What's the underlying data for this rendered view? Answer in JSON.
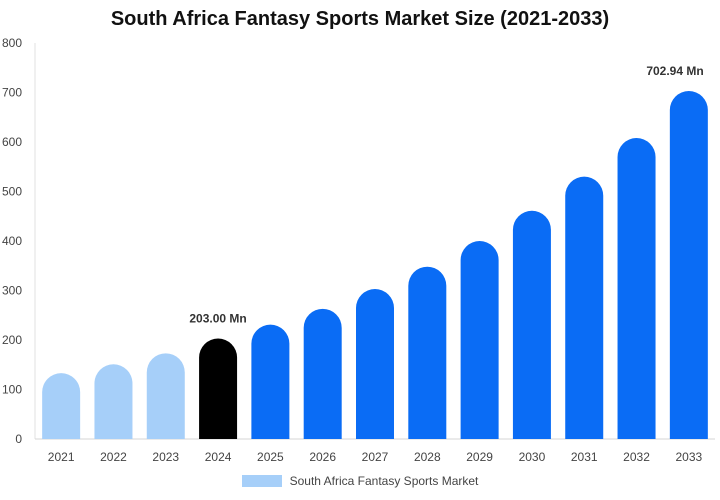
{
  "chart_data": {
    "type": "bar",
    "title": "South Africa Fantasy Sports Market Size (2021-2033)",
    "categories": [
      "2021",
      "2022",
      "2023",
      "2024",
      "2025",
      "2026",
      "2027",
      "2028",
      "2029",
      "2030",
      "2031",
      "2032",
      "2033"
    ],
    "series": [
      {
        "name": "South Africa Fantasy Sports Market",
        "values": [
          133,
          151,
          173,
          203,
          231,
          263,
          303,
          348,
          400,
          461,
          530,
          608,
          702.94
        ]
      }
    ],
    "ylim": [
      0,
      800
    ],
    "yticks": [
      "0",
      "100",
      "200",
      "300",
      "400",
      "500",
      "600",
      "700",
      "800"
    ],
    "data_labels": [
      {
        "category": "2024",
        "text": "203.00 Mn"
      },
      {
        "category": "2033",
        "text": "702.94 Mn"
      }
    ],
    "colors": {
      "historical": "#a6cff9",
      "current": "#000000",
      "forecast": "#0a6cf5"
    },
    "legend_position": "bottom",
    "grid": false
  }
}
